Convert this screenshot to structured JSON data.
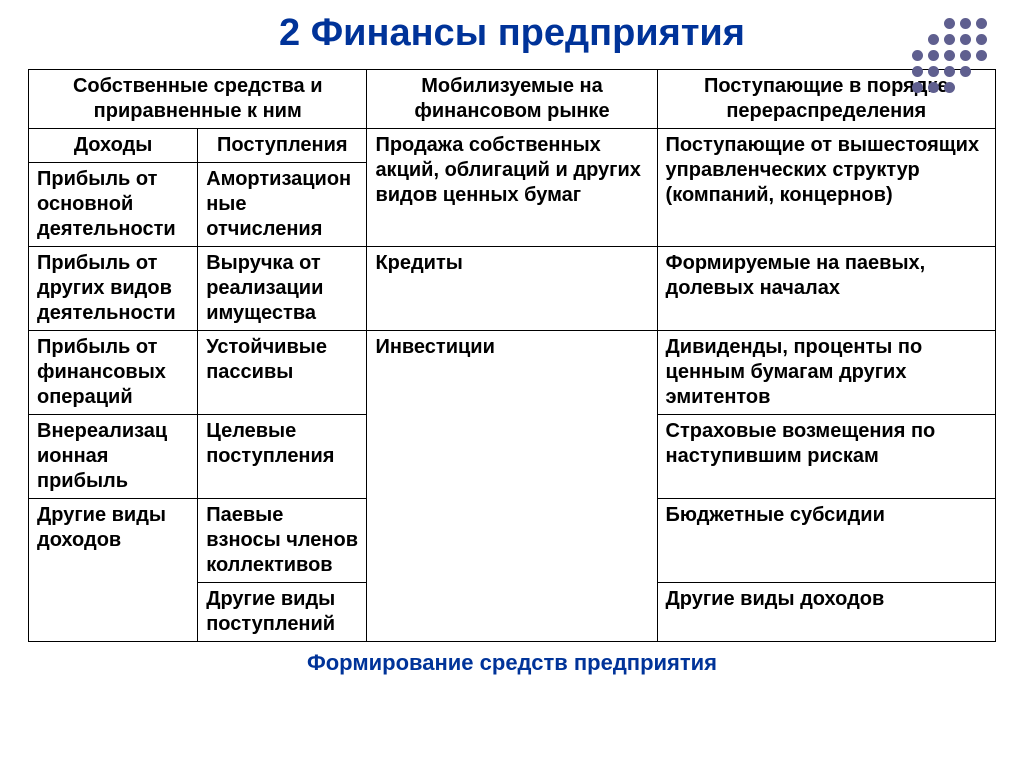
{
  "title": {
    "text": "2 Финансы предприятия",
    "color": "#003399",
    "fontsize": 38
  },
  "caption": {
    "text": "Формирование средств предприятия",
    "color": "#003399",
    "fontsize": 22
  },
  "dot_grid": {
    "pattern": [
      [
        0,
        0,
        1,
        1,
        1
      ],
      [
        0,
        1,
        1,
        1,
        1
      ],
      [
        1,
        1,
        1,
        1,
        1
      ],
      [
        1,
        1,
        1,
        1,
        0
      ],
      [
        1,
        1,
        1,
        0,
        0
      ]
    ],
    "color": "#5f5f8f"
  },
  "table": {
    "text_color": "#000000",
    "cell_fontsize": 20,
    "col_widths": [
      "17.5%",
      "17.5%",
      "30%",
      "35%"
    ],
    "headers": {
      "own": "Собственные средства и приравненные к ним",
      "market": "Мобилизуемые на финансовом рынке",
      "redist": "Поступающие в порядке перераспределения",
      "income": "Доходы",
      "receipts": "Поступления"
    },
    "rows": [
      {
        "income": "Прибыль от основной деятельности",
        "receipts": "Амортизацион ные отчисления",
        "market": "Продажа собственных акций, облигаций и других видов ценных бумаг",
        "redist": "Поступающие от вышестоящих управленческих структур (компаний, концернов)"
      },
      {
        "income": "Прибыль от других видов деятельности",
        "receipts": "Выручка от реализации имущества",
        "market": "Кредиты",
        "redist": "Формируемые на паевых, долевых началах"
      },
      {
        "income": "Прибыль от финансовых операций",
        "receipts": "Устойчивые пассивы",
        "market": "Инвестиции",
        "redist": "Дивиденды, проценты по ценным бумагам других эмитентов"
      },
      {
        "income": "Внереализац ионная прибыль",
        "receipts": "Целевые поступления",
        "market": "",
        "redist": "Страховые возмещения по наступившим рискам"
      },
      {
        "income": "Другие виды доходов",
        "receipts": "Паевые взносы членов коллективов",
        "market": "",
        "redist": "Бюджетные субсидии"
      },
      {
        "income": "",
        "receipts": "Другие виды поступлений",
        "market": "",
        "redist": "Другие виды доходов"
      }
    ]
  }
}
